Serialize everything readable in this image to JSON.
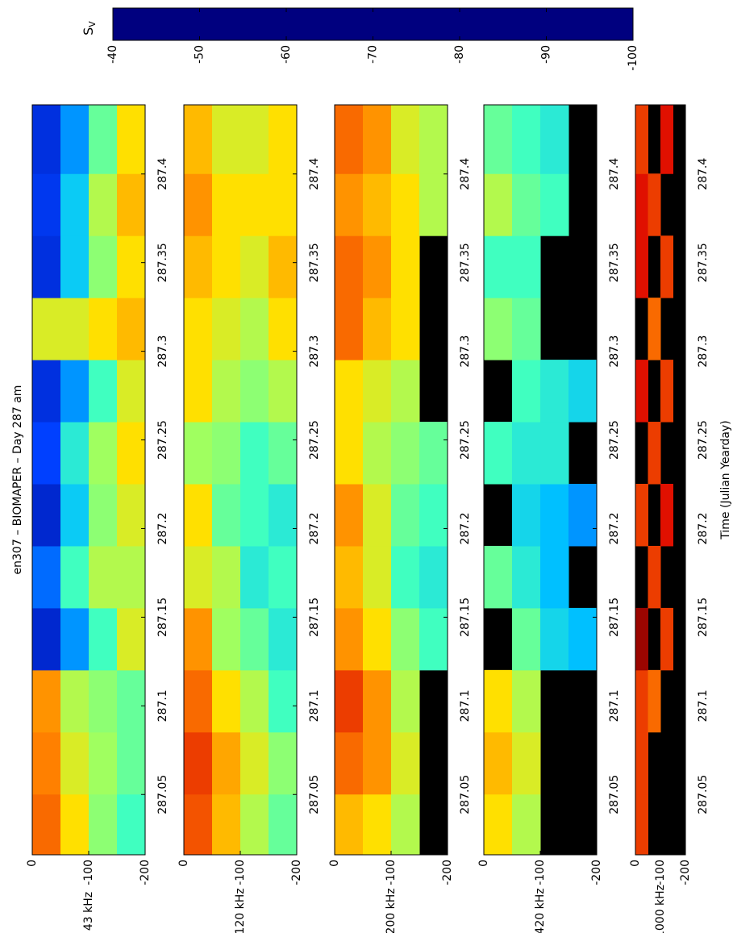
{
  "figure": {
    "title": "en307 – BIOMAPER – Day 287 am",
    "xlabel": "Time (Julian Yearday)",
    "colorbar": {
      "label": "S",
      "label_sub": "V",
      "clim": [
        -100,
        -40
      ],
      "ticks": [
        -40,
        -50,
        -60,
        -70,
        -80,
        -90,
        -100
      ],
      "stops": [
        [
          -100,
          "#00007f"
        ],
        [
          -92,
          "#0040ff"
        ],
        [
          -86,
          "#00c0ff"
        ],
        [
          -80,
          "#40ffc0"
        ],
        [
          -75,
          "#a0ff60"
        ],
        [
          -70,
          "#ffe000"
        ],
        [
          -65,
          "#ff8000"
        ],
        [
          -60,
          "#e01000"
        ],
        [
          -57.2,
          "#800000"
        ],
        [
          -57.2,
          "#b0b0b0"
        ],
        [
          -40,
          "#000000"
        ]
      ],
      "nodata_color": "#000000"
    }
  },
  "chart_data": [
    {
      "type": "heatmap",
      "ylabel": "43 kHz",
      "xlim": [
        287.016,
        287.439
      ],
      "xticks": [
        287.05,
        287.1,
        287.15,
        287.2,
        287.25,
        287.3,
        287.35,
        287.4
      ],
      "ylim": [
        -200,
        0
      ],
      "yticks": [
        0,
        -100,
        -200
      ],
      "x_edges": [
        287.016,
        287.05,
        287.085,
        287.12,
        287.155,
        287.19,
        287.225,
        287.26,
        287.295,
        287.33,
        287.365,
        287.4,
        287.439
      ],
      "y_edges": [
        0,
        -50,
        -100,
        -150,
        -200
      ],
      "values": [
        [
          -64,
          -65,
          -66,
          -95,
          -90,
          -95,
          -92,
          -94,
          -72,
          -94,
          -93,
          -94
        ],
        [
          -70,
          -72,
          -74,
          -88,
          -80,
          -85,
          -82,
          -88,
          -72,
          -85,
          -85,
          -88
        ],
        [
          -76,
          -75,
          -76,
          -80,
          -74,
          -76,
          -75,
          -80,
          -70,
          -76,
          -74,
          -78
        ],
        [
          -80,
          -78,
          -78,
          -72,
          -74,
          -72,
          -70,
          -72,
          -68,
          -70,
          -68,
          -70
        ]
      ]
    },
    {
      "type": "heatmap",
      "ylabel": "120 kHz",
      "xlim": [
        287.016,
        287.439
      ],
      "xticks": [
        287.05,
        287.1,
        287.15,
        287.2,
        287.25,
        287.3,
        287.35,
        287.4
      ],
      "ylim": [
        -200,
        0
      ],
      "yticks": [
        0,
        -100,
        -200
      ],
      "x_edges": [
        287.016,
        287.05,
        287.085,
        287.12,
        287.155,
        287.19,
        287.225,
        287.26,
        287.295,
        287.33,
        287.365,
        287.4,
        287.439
      ],
      "y_edges": [
        0,
        -50,
        -100,
        -150,
        -200
      ],
      "values": [
        [
          -63,
          -62,
          -64,
          -66,
          -72,
          -70,
          -75,
          -70,
          -70,
          -68,
          -66,
          -68
        ],
        [
          -68,
          -67,
          -70,
          -75,
          -74,
          -78,
          -76,
          -74,
          -72,
          -70,
          -70,
          -72
        ],
        [
          -74,
          -72,
          -74,
          -78,
          -82,
          -80,
          -80,
          -76,
          -74,
          -72,
          -70,
          -72
        ],
        [
          -78,
          -76,
          -80,
          -82,
          -80,
          -82,
          -78,
          -74,
          -70,
          -68,
          -70,
          -70
        ]
      ]
    },
    {
      "type": "heatmap",
      "ylabel": "200 kHz",
      "xlim": [
        287.016,
        287.439
      ],
      "xticks": [
        287.05,
        287.1,
        287.15,
        287.2,
        287.25,
        287.3,
        287.35,
        287.4
      ],
      "ylim": [
        -200,
        0
      ],
      "yticks": [
        0,
        -100,
        -200
      ],
      "x_edges": [
        287.016,
        287.05,
        287.085,
        287.12,
        287.155,
        287.19,
        287.225,
        287.26,
        287.295,
        287.33,
        287.365,
        287.4,
        287.439
      ],
      "y_edges": [
        0,
        -50,
        -100,
        -150,
        -200
      ],
      "values": [
        [
          -68,
          -64,
          -62,
          -66,
          -68,
          -66,
          -70,
          -70,
          -64,
          -64,
          -66,
          -64
        ],
        [
          -70,
          -66,
          -66,
          -70,
          -72,
          -72,
          -74,
          -72,
          -68,
          -66,
          -68,
          -66
        ],
        [
          -74,
          -72,
          -74,
          -76,
          -80,
          -78,
          -76,
          -74,
          -70,
          -70,
          -70,
          -72
        ],
        [
          null,
          null,
          null,
          -80,
          -82,
          -80,
          -78,
          null,
          null,
          null,
          -74,
          -74
        ]
      ]
    },
    {
      "type": "heatmap",
      "ylabel": "420 kHz",
      "xlim": [
        287.016,
        287.439
      ],
      "xticks": [
        287.05,
        287.1,
        287.15,
        287.2,
        287.25,
        287.3,
        287.35,
        287.4
      ],
      "ylim": [
        -200,
        0
      ],
      "yticks": [
        0,
        -100,
        -200
      ],
      "x_edges": [
        287.016,
        287.05,
        287.085,
        287.12,
        287.155,
        287.19,
        287.225,
        287.26,
        287.295,
        287.33,
        287.365,
        287.4,
        287.439
      ],
      "y_edges": [
        0,
        -50,
        -100,
        -150,
        -200
      ],
      "values": [
        [
          -70,
          -68,
          -70,
          null,
          -78,
          null,
          -80,
          null,
          -76,
          -80,
          -74,
          -78
        ],
        [
          -74,
          -72,
          -74,
          -78,
          -82,
          -84,
          -82,
          -80,
          -78,
          -80,
          -78,
          -80
        ],
        [
          null,
          null,
          null,
          -84,
          -86,
          -86,
          -82,
          -82,
          null,
          null,
          -80,
          -82
        ],
        [
          null,
          null,
          null,
          -86,
          null,
          -88,
          null,
          -84,
          null,
          null,
          null,
          null
        ]
      ]
    },
    {
      "type": "heatmap",
      "ylabel": "1000 kHz",
      "xlim": [
        287.016,
        287.439
      ],
      "xticks": [
        287.05,
        287.1,
        287.15,
        287.2,
        287.25,
        287.3,
        287.35,
        287.4
      ],
      "ylim": [
        -200,
        0
      ],
      "yticks": [
        0,
        -100,
        -200
      ],
      "x_edges": [
        287.016,
        287.05,
        287.085,
        287.12,
        287.155,
        287.19,
        287.225,
        287.26,
        287.295,
        287.33,
        287.365,
        287.4,
        287.439
      ],
      "y_edges": [
        0,
        -50,
        -100,
        -150,
        -200
      ],
      "values": [
        [
          -62,
          -62,
          -62,
          -58,
          null,
          -62,
          null,
          -60,
          null,
          -60,
          -60,
          -62
        ],
        [
          null,
          null,
          -64,
          null,
          -62,
          null,
          -62,
          null,
          -64,
          null,
          -62,
          null
        ],
        [
          null,
          null,
          null,
          -62,
          null,
          -60,
          null,
          -62,
          null,
          -62,
          null,
          -60
        ],
        [
          null,
          null,
          null,
          null,
          null,
          null,
          null,
          null,
          null,
          null,
          null,
          null
        ]
      ]
    }
  ]
}
